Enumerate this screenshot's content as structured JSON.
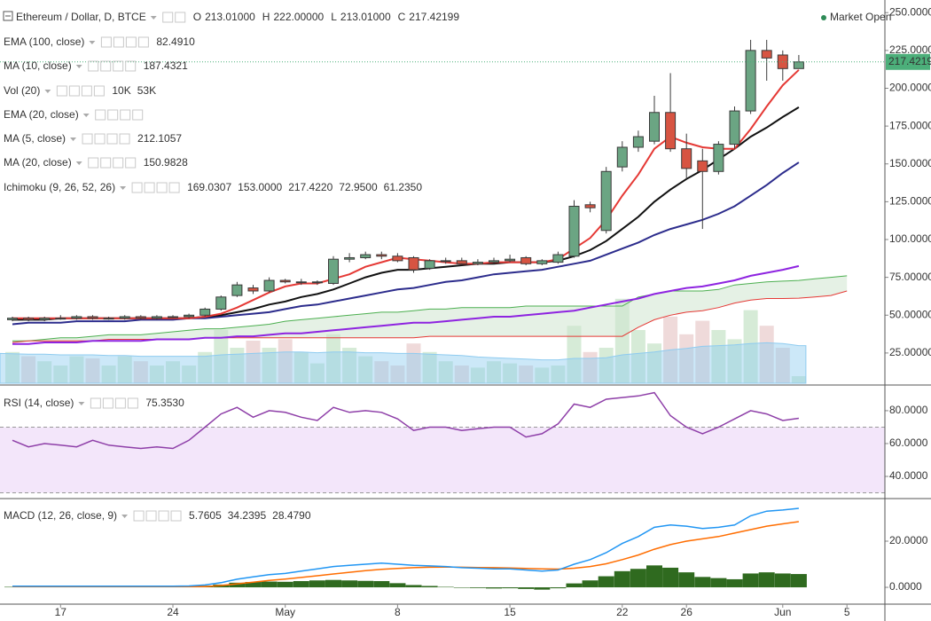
{
  "chart_data": [
    {
      "type": "candlestick",
      "title": "Ethereum / Dollar, D, BTCE",
      "ohlc": [
        {
          "key": "O",
          "text": "213.01000"
        },
        {
          "key": "H",
          "text": "222.00000"
        },
        {
          "key": "L",
          "text": "213.01000"
        },
        {
          "key": "C",
          "text": "217.42199"
        }
      ],
      "status": "Market Open",
      "status_color": "#2e8b57",
      "categories": [
        null,
        null,
        null,
        "17",
        null,
        null,
        null,
        null,
        null,
        null,
        "24",
        null,
        null,
        null,
        null,
        null,
        null,
        "May",
        null,
        null,
        null,
        null,
        null,
        null,
        "8",
        null,
        null,
        null,
        null,
        null,
        null,
        "15",
        null,
        null,
        null,
        null,
        null,
        null,
        "22",
        null,
        null,
        null,
        "26",
        null,
        null,
        null,
        null,
        null,
        "Jun",
        null,
        null,
        null,
        "5"
      ],
      "open": [
        47,
        48,
        47,
        48,
        48,
        49,
        48,
        48,
        49,
        48,
        49,
        49,
        50,
        54,
        63,
        68,
        66,
        73,
        72,
        72,
        71,
        87,
        88,
        90,
        89,
        88,
        81,
        86,
        86,
        84,
        85,
        86,
        88,
        84,
        85,
        89,
        123,
        106,
        148,
        161,
        165,
        184,
        160,
        152,
        145,
        163,
        185,
        225,
        222,
        213.01,
        null,
        null,
        null
      ],
      "high": [
        49,
        49,
        49,
        50,
        50,
        50,
        49,
        50,
        50,
        50,
        50,
        51,
        55,
        63,
        72,
        70,
        75,
        74,
        74,
        73,
        89,
        91,
        92,
        92,
        91,
        89,
        87,
        88,
        88,
        87,
        88,
        90,
        89,
        87,
        92,
        126,
        125,
        148,
        165,
        172,
        195,
        210,
        170,
        160,
        165,
        188,
        232,
        232,
        225,
        222,
        null,
        null,
        null
      ],
      "low": [
        46,
        46,
        46,
        47,
        47,
        47,
        47,
        47,
        47,
        47,
        48,
        48,
        49,
        53,
        62,
        64,
        65,
        71,
        70,
        70,
        70,
        85,
        87,
        87,
        85,
        78,
        80,
        84,
        83,
        83,
        84,
        85,
        83,
        83,
        84,
        88,
        118,
        104,
        145,
        158,
        163,
        158,
        140,
        107,
        143,
        160,
        183,
        205,
        205,
        213.01,
        null,
        null,
        null
      ],
      "close": [
        48,
        47,
        48,
        48,
        49,
        48,
        48,
        49,
        48,
        49,
        49,
        50,
        54,
        62,
        70,
        66,
        73,
        72,
        72,
        72,
        87,
        88,
        90,
        89,
        86,
        80,
        86,
        86,
        84,
        85,
        86,
        87,
        84,
        86,
        90,
        122,
        121,
        145,
        161,
        168,
        184,
        160,
        147,
        145,
        163,
        185,
        225,
        220,
        213,
        217.42199,
        null,
        null,
        null
      ],
      "up_color": "#6ba583",
      "down_color": "#d75442",
      "border_color": "#3a3a3a",
      "price_line_color": "#4caf7a",
      "ylim": [
        5,
        256
      ],
      "yticks": [
        {
          "value": 25,
          "label": "25.00000"
        },
        {
          "value": 50,
          "label": "50.00000"
        },
        {
          "value": 75,
          "label": "75.00000"
        },
        {
          "value": 100,
          "label": "100.00000"
        },
        {
          "value": 125,
          "label": "125.00000"
        },
        {
          "value": 150,
          "label": "150.00000"
        },
        {
          "value": 175,
          "label": "175.00000"
        },
        {
          "value": 200,
          "label": "200.00000"
        },
        {
          "value": 225,
          "label": "225.00000"
        },
        {
          "value": 250,
          "label": "250.00000"
        }
      ],
      "indicators": [
        {
          "kind": "line",
          "name": "EMA (100, close)",
          "color": "#8e24e0",
          "readouts": [
            {
              "text": "82.4910",
              "color": "#8e24e0"
            }
          ],
          "values": [
            31,
            31,
            32,
            32,
            32,
            33,
            33,
            33,
            33,
            34,
            34,
            34,
            35,
            35,
            36,
            36,
            37,
            38,
            38,
            39,
            40,
            41,
            42,
            43,
            44,
            45,
            45,
            46,
            47,
            48,
            49,
            49,
            50,
            51,
            52,
            53,
            55,
            57,
            59,
            61,
            64,
            66,
            68,
            69,
            71,
            73,
            76,
            78,
            80,
            82.491,
            null,
            null,
            null
          ]
        },
        {
          "kind": "line",
          "name": "MA (10, close)",
          "color": "#111111",
          "readouts": [
            {
              "text": "187.4321",
              "color": "#111111"
            }
          ],
          "values": [
            47,
            47,
            47,
            48,
            48,
            48,
            48,
            48,
            48,
            48,
            48,
            48,
            49,
            50,
            52,
            54,
            57,
            59,
            62,
            64,
            67,
            71,
            75,
            78,
            80,
            80,
            81,
            82,
            83,
            84,
            84,
            85,
            85,
            85,
            86,
            89,
            93,
            99,
            107,
            115,
            125,
            133,
            140,
            146,
            153,
            160,
            168,
            174,
            181,
            187.4321,
            null,
            null,
            null
          ]
        },
        {
          "kind": "volume",
          "name": "Vol (20)",
          "up_color": "#cfe8d0",
          "down_color": "#ecd3d3",
          "ma_color": "#8ecbf0",
          "readouts": [
            {
              "text": "10K",
              "color": "#2e7d32"
            },
            {
              "text": "53K",
              "color": "#1e88e5"
            }
          ],
          "values": [
            44,
            38,
            31,
            25,
            38,
            35,
            25,
            38,
            31,
            25,
            31,
            25,
            44,
            75,
            50,
            60,
            50,
            62,
            44,
            28,
            69,
            50,
            38,
            31,
            25,
            56,
            44,
            31,
            25,
            22,
            31,
            28,
            25,
            22,
            25,
            81,
            44,
            50,
            119,
            75,
            56,
            94,
            69,
            88,
            75,
            62,
            103,
            81,
            50,
            10,
            null,
            null,
            null
          ],
          "ma_values": [
            42,
            41,
            41,
            40,
            40,
            40,
            39,
            39,
            38,
            38,
            38,
            38,
            38,
            40,
            41,
            42,
            43,
            44,
            44,
            43,
            44,
            44,
            43,
            43,
            42,
            42,
            41,
            40,
            39,
            37,
            36,
            35,
            34,
            33,
            33,
            35,
            35,
            36,
            40,
            42,
            44,
            47,
            49,
            52,
            53,
            54,
            56,
            57,
            56,
            53,
            null,
            null,
            null
          ]
        },
        {
          "kind": "line",
          "name": "EMA (20, close)",
          "visible": false,
          "color": "#aaaaaa"
        },
        {
          "kind": "line",
          "name": "MA (5, close)",
          "color": "#e53935",
          "readouts": [
            {
              "text": "212.1057",
              "color": "#e53935"
            }
          ],
          "values": [
            48,
            48,
            48,
            48,
            48,
            48,
            48,
            48,
            48,
            48,
            48,
            48,
            49,
            51,
            55,
            60,
            65,
            69,
            71,
            71,
            74,
            77,
            82,
            85,
            88,
            87,
            86,
            85,
            84,
            84,
            85,
            85,
            85,
            85,
            87,
            94,
            101,
            113,
            129,
            143,
            160,
            168,
            164,
            161,
            160,
            160,
            173,
            188,
            202,
            212.1057,
            null,
            null,
            null
          ]
        },
        {
          "kind": "line",
          "name": "MA (20, close)",
          "color": "#2c2c8c",
          "readouts": [
            {
              "text": "150.9828",
              "color": "#2c2c8c"
            }
          ],
          "values": [
            44,
            45,
            45,
            45,
            46,
            46,
            46,
            46,
            47,
            47,
            47,
            48,
            48,
            49,
            50,
            51,
            52,
            54,
            56,
            57,
            59,
            61,
            63,
            65,
            67,
            68,
            70,
            72,
            73,
            75,
            77,
            78,
            79,
            80,
            82,
            84,
            86,
            90,
            94,
            98,
            103,
            107,
            110,
            113,
            117,
            122,
            129,
            136,
            144,
            150.9828,
            null,
            null,
            null
          ]
        },
        {
          "kind": "ichimoku",
          "name": "Ichimoku (9, 26, 52, 26)",
          "cloud_color": "#cfe6cf",
          "readouts": [
            {
              "text": "169.0307",
              "color": "#1e6fd9"
            },
            {
              "text": "153.0000",
              "color": "#8b1a1a"
            },
            {
              "text": "217.4220",
              "color": "#2e7d32"
            },
            {
              "text": "72.9500",
              "color": "#1b5e20"
            },
            {
              "text": "61.2350",
              "color": "#e53935"
            }
          ],
          "span_a": {
            "color": "#4caf50",
            "values": [
              33,
              33,
              34,
              35,
              35,
              36,
              37,
              37,
              37,
              38,
              39,
              40,
              41,
              41,
              42,
              43,
              44,
              46,
              47,
              48,
              49,
              50,
              51,
              52,
              52,
              53,
              54,
              54,
              55,
              55,
              55,
              55,
              56,
              56,
              56,
              56,
              56,
              56,
              56,
              62,
              64,
              66,
              66,
              66,
              67,
              70,
              71,
              72,
              72.5,
              72.95,
              74,
              75,
              76
            ]
          },
          "span_b": {
            "color": "#e53935",
            "values": [
              32,
              33,
              33,
              33,
              33,
              33,
              34,
              34,
              34,
              34,
              34,
              34,
              35,
              35,
              35,
              35,
              35,
              35,
              35,
              35,
              35,
              35,
              35,
              35,
              35,
              35,
              36,
              36,
              36,
              36,
              36,
              36,
              36,
              36,
              36,
              36,
              36,
              36,
              36,
              42,
              47,
              50,
              52,
              53,
              55,
              58,
              60,
              61,
              61,
              61.235,
              62,
              63,
              66
            ]
          }
        }
      ]
    },
    {
      "type": "line",
      "series": [
        {
          "name": "RSI (14, close)",
          "color": "#8e3fa8",
          "readouts": [
            {
              "text": "75.3530",
              "color": "#8e3fa8"
            }
          ],
          "values": [
            62,
            58,
            60,
            59,
            58,
            62,
            59,
            58,
            57,
            58,
            57,
            62,
            70,
            78,
            82,
            76,
            80,
            79,
            76,
            74,
            82,
            79,
            80,
            79,
            75,
            68,
            70,
            70,
            68,
            69,
            70,
            70,
            64,
            66,
            72,
            84,
            82,
            87,
            88,
            89,
            91,
            77,
            70,
            66,
            70,
            75,
            80,
            78,
            74,
            75.353,
            null,
            null,
            null
          ]
        }
      ],
      "band": [
        30,
        70
      ],
      "band_color": "#f3e6fa",
      "ylim": [
        27.6,
        94
      ],
      "yticks": [
        {
          "value": 40,
          "label": "40.0000"
        },
        {
          "value": 60,
          "label": "60.0000"
        },
        {
          "value": 80,
          "label": "80.0000"
        }
      ]
    },
    {
      "type": "macd",
      "name": "MACD (12, 26, close, 9)",
      "histogram": {
        "color": "#2f6a1f",
        "readouts": [
          {
            "text": "5.7605",
            "color": "#2f6a1f"
          }
        ],
        "values": [
          0.2,
          0.2,
          0.2,
          0.2,
          0.2,
          0.2,
          0.2,
          0.2,
          0.2,
          0.2,
          0.2,
          0.3,
          0.7,
          1.2,
          2,
          2.3,
          2.5,
          2.4,
          2.7,
          3,
          3.2,
          3,
          2.8,
          2.7,
          1.8,
          1,
          0.6,
          0.2,
          -0.2,
          -0.3,
          -0.5,
          -0.4,
          -0.7,
          -1,
          -0.4,
          1.7,
          3,
          4.8,
          7,
          8,
          9.5,
          8.5,
          6.5,
          4.5,
          4,
          3.5,
          6,
          6.5,
          6,
          5.7605,
          null,
          null,
          null
        ]
      },
      "macd": {
        "color": "#2196f3",
        "readouts": [
          {
            "text": "34.2395",
            "color": "#2196f3"
          }
        ],
        "values": [
          0.5,
          0.5,
          0.5,
          0.5,
          0.5,
          0.5,
          0.5,
          0.5,
          0.5,
          0.5,
          0.5,
          0.6,
          1,
          2,
          3.5,
          4.5,
          5.5,
          6,
          7,
          8,
          9,
          9.5,
          10,
          10.5,
          10,
          9.5,
          9.3,
          9,
          8.5,
          8.3,
          8,
          8,
          7.5,
          7,
          7.5,
          10,
          12,
          15,
          19,
          22,
          26,
          27,
          26.5,
          25.5,
          26,
          27,
          31,
          33,
          33.5,
          34.2395,
          null,
          null,
          null
        ]
      },
      "signal": {
        "color": "#ff6d00",
        "readouts": [
          {
            "text": "28.4790",
            "color": "#ff6d00"
          }
        ],
        "values": [
          0.3,
          0.3,
          0.3,
          0.3,
          0.3,
          0.3,
          0.3,
          0.3,
          0.3,
          0.3,
          0.3,
          0.3,
          0.3,
          0.8,
          1.5,
          2.2,
          3,
          3.6,
          4.3,
          5,
          5.8,
          6.5,
          7.2,
          7.8,
          8.2,
          8.5,
          8.7,
          8.8,
          8.7,
          8.6,
          8.5,
          8.4,
          8.2,
          8,
          7.9,
          8.3,
          9,
          10.2,
          12,
          14,
          16.5,
          18.5,
          20,
          21,
          22,
          23.5,
          25,
          26.5,
          27.5,
          28.479,
          null,
          null,
          null
        ]
      },
      "ylim": [
        -6.9,
        37.3
      ],
      "yticks": [
        {
          "value": 0,
          "label": "0.0000"
        },
        {
          "value": 20,
          "label": "20.0000"
        }
      ]
    }
  ]
}
